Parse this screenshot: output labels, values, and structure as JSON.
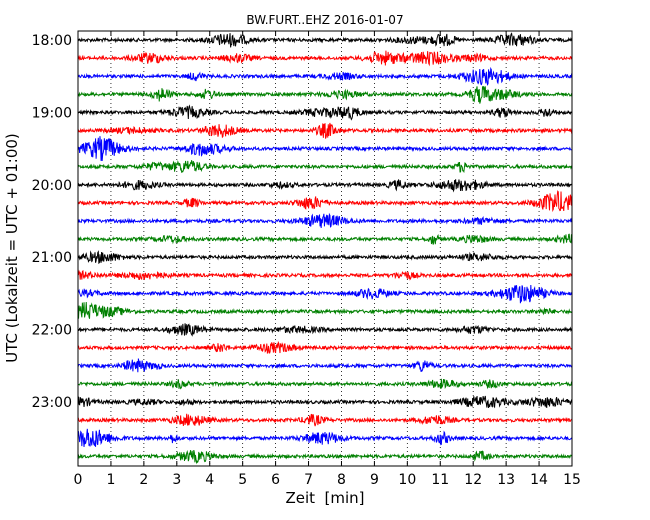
{
  "chart_data": {
    "type": "line",
    "title": "BW.FURT..EHZ 2016-01-07",
    "xlabel": "Zeit  [min]",
    "ylabel": "UTC (Lokalzeit = UTC + 01:00)",
    "xlim": [
      0,
      15
    ],
    "x_ticks": [
      "0",
      "1",
      "2",
      "3",
      "4",
      "5",
      "6",
      "7",
      "8",
      "9",
      "10",
      "11",
      "12",
      "13",
      "14",
      "15"
    ],
    "y_ticks": [
      "18:00",
      "19:00",
      "20:00",
      "21:00",
      "22:00",
      "23:00"
    ],
    "grid": "vertical dotted",
    "trace_color_cycle": [
      "#000000",
      "#ff0000",
      "#0000ff",
      "#008000"
    ],
    "traces": [
      {
        "start": "18:00",
        "color": "#000000"
      },
      {
        "start": "18:15",
        "color": "#ff0000"
      },
      {
        "start": "18:30",
        "color": "#0000ff"
      },
      {
        "start": "18:45",
        "color": "#008000"
      },
      {
        "start": "19:00",
        "color": "#000000"
      },
      {
        "start": "19:15",
        "color": "#ff0000"
      },
      {
        "start": "19:30",
        "color": "#0000ff"
      },
      {
        "start": "19:45",
        "color": "#008000"
      },
      {
        "start": "20:00",
        "color": "#000000"
      },
      {
        "start": "20:15",
        "color": "#ff0000"
      },
      {
        "start": "20:30",
        "color": "#0000ff"
      },
      {
        "start": "20:45",
        "color": "#008000"
      },
      {
        "start": "21:00",
        "color": "#000000"
      },
      {
        "start": "21:15",
        "color": "#ff0000"
      },
      {
        "start": "21:30",
        "color": "#0000ff"
      },
      {
        "start": "21:45",
        "color": "#008000"
      },
      {
        "start": "22:00",
        "color": "#000000"
      },
      {
        "start": "22:15",
        "color": "#ff0000"
      },
      {
        "start": "22:30",
        "color": "#0000ff"
      },
      {
        "start": "22:45",
        "color": "#008000"
      },
      {
        "start": "23:00",
        "color": "#000000"
      },
      {
        "start": "23:15",
        "color": "#ff0000"
      },
      {
        "start": "23:30",
        "color": "#0000ff"
      },
      {
        "start": "23:45",
        "color": "#008000"
      }
    ]
  }
}
